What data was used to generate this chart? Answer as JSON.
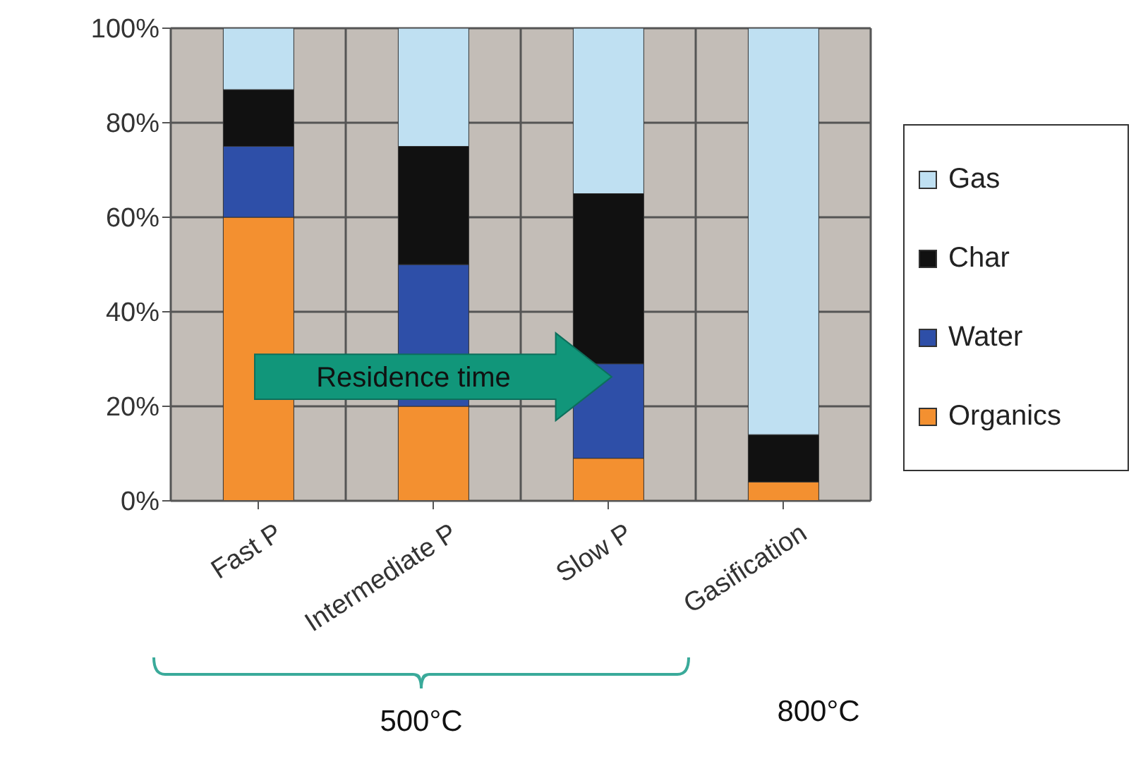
{
  "chart_data": {
    "type": "bar",
    "stacked": true,
    "categories": [
      "Fast P",
      "Intermediate P",
      "Slow P",
      "Gasification"
    ],
    "series": [
      {
        "name": "Organics",
        "color": "#f39030",
        "values": [
          60,
          20,
          9,
          4
        ]
      },
      {
        "name": "Water",
        "color": "#2e4fa8",
        "values": [
          15,
          30,
          20,
          0
        ]
      },
      {
        "name": "Char",
        "color": "#111111",
        "values": [
          12,
          25,
          36,
          10
        ]
      },
      {
        "name": "Gas",
        "color": "#bfe0f2",
        "values": [
          13,
          25,
          35,
          86
        ]
      }
    ],
    "ylim": [
      0,
      100
    ],
    "yticks": [
      {
        "value": 0,
        "label": "0%"
      },
      {
        "value": 20,
        "label": "20%"
      },
      {
        "value": 40,
        "label": "40%"
      },
      {
        "value": 60,
        "label": "60%"
      },
      {
        "value": 80,
        "label": "80%"
      },
      {
        "value": 100,
        "label": "100%"
      }
    ],
    "grid": true,
    "legend": "right",
    "annotations": [
      "Residence time",
      "500°C",
      "800°C"
    ]
  }
}
